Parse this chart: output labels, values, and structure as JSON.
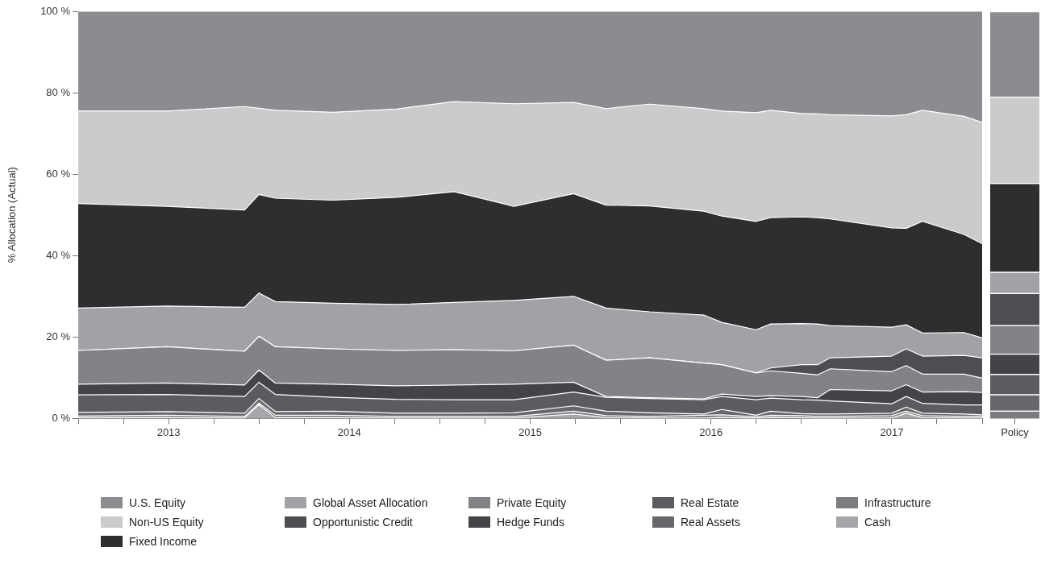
{
  "chart_data": [
    {
      "type": "area",
      "ylabel": "% Allocation (Actual)",
      "stacked": true,
      "legend": "bottom",
      "x": [
        2013.0,
        2013.49,
        2013.92,
        2014.0,
        2014.09,
        2014.41,
        2014.76,
        2015.08,
        2015.41,
        2015.74,
        2015.92,
        2016.16,
        2016.46,
        2016.56,
        2016.75,
        2016.83,
        2017.0,
        2017.09,
        2017.16,
        2017.5,
        2017.58,
        2017.67,
        2017.9,
        2018.0
      ],
      "xlim": [
        2013,
        2018
      ],
      "xticks": [
        {
          "value": 2013,
          "label": null
        },
        {
          "value": 2013.25,
          "label": null
        },
        {
          "value": 2013.5,
          "label": "2013"
        },
        {
          "value": 2013.75,
          "label": null
        },
        {
          "value": 2014,
          "label": null
        },
        {
          "value": 2014.25,
          "label": null
        },
        {
          "value": 2014.5,
          "label": "2014"
        },
        {
          "value": 2014.75,
          "label": null
        },
        {
          "value": 2015,
          "label": null
        },
        {
          "value": 2015.25,
          "label": null
        },
        {
          "value": 2015.5,
          "label": "2015"
        },
        {
          "value": 2015.75,
          "label": null
        },
        {
          "value": 2016,
          "label": null
        },
        {
          "value": 2016.25,
          "label": null
        },
        {
          "value": 2016.5,
          "label": "2016"
        },
        {
          "value": 2016.75,
          "label": null
        },
        {
          "value": 2017,
          "label": null
        },
        {
          "value": 2017.25,
          "label": null
        },
        {
          "value": 2017.5,
          "label": "2017"
        },
        {
          "value": 2017.75,
          "label": null
        },
        {
          "value": 2018,
          "label": null
        }
      ],
      "ylim": [
        0,
        100
      ],
      "yticks": [
        {
          "value": 0,
          "label": "0 %"
        },
        {
          "value": 20,
          "label": "20 %"
        },
        {
          "value": 40,
          "label": "40 %"
        },
        {
          "value": 60,
          "label": "60 %"
        },
        {
          "value": 80,
          "label": "80 %"
        },
        {
          "value": 100,
          "label": "100 %"
        }
      ],
      "series": [
        {
          "name": "Cash",
          "color": "#a6a6aa",
          "values": [
            0.2,
            0.2,
            0.1,
            3.4,
            0.2,
            0.2,
            0.1,
            0.1,
            0.1,
            1.1,
            0.2,
            0.1,
            0.1,
            0.3,
            0.1,
            0.3,
            0.2,
            0.1,
            0.1,
            0.1,
            1.3,
            0.2,
            0.1,
            0.1
          ]
        },
        {
          "name": "Infrastructure",
          "color": "#7c7c80",
          "values": [
            0.4,
            0.6,
            0.4,
            0.4,
            0.6,
            0.6,
            0.4,
            0.4,
            0.4,
            0.7,
            0.5,
            0.4,
            0.7,
            0.6,
            0.3,
            0.5,
            0.5,
            0.4,
            0.4,
            0.6,
            0.5,
            0.5,
            0.4,
            0.4
          ]
        },
        {
          "name": "Real Assets",
          "color": "#68686c",
          "values": [
            0.9,
            0.9,
            0.8,
            1.1,
            0.9,
            1.0,
            0.8,
            0.8,
            0.9,
            1.3,
            1.1,
            0.9,
            0.3,
            1.3,
            0.4,
            1.0,
            0.5,
            0.6,
            0.6,
            0.6,
            1.0,
            0.6,
            0.6,
            0.4
          ]
        },
        {
          "name": "Real Estate",
          "color": "#5c5c60",
          "values": [
            4.3,
            4.2,
            4.1,
            4.0,
            4.2,
            3.4,
            3.4,
            3.3,
            3.2,
            3.4,
            3.4,
            3.5,
            3.5,
            3.2,
            3.8,
            3.2,
            3.4,
            3.4,
            3.2,
            2.3,
            2.6,
            2.4,
            2.2,
            2.4
          ]
        },
        {
          "name": "Hedge Funds",
          "color": "#444448",
          "values": [
            2.6,
            2.8,
            2.8,
            3.0,
            2.8,
            3.2,
            3.3,
            3.6,
            3.8,
            2.4,
            0.2,
            0.2,
            0.2,
            0.6,
            0.8,
            0.6,
            0.8,
            0.6,
            2.8,
            3.2,
            2.9,
            2.8,
            3.3,
            3.1
          ]
        },
        {
          "name": "Private Equity",
          "color": "#838387",
          "values": [
            8.3,
            8.9,
            8.3,
            8.3,
            8.9,
            8.7,
            8.7,
            8.7,
            8.2,
            9.1,
            8.9,
            9.8,
            8.8,
            7.2,
            5.8,
            6.1,
            5.7,
            5.6,
            5.1,
            4.7,
            4.7,
            4.4,
            4.3,
            3.5
          ]
        },
        {
          "name": "Opportunistic Credit",
          "color": "#4e4e52",
          "values": [
            0,
            0,
            0,
            0,
            0,
            0,
            0,
            0,
            0,
            0,
            0,
            0,
            0,
            0,
            0,
            0.7,
            2.1,
            2.5,
            2.7,
            3.8,
            4.1,
            4.4,
            4.6,
            5.0
          ]
        },
        {
          "name": "Global Asset Allocation",
          "color": "#a2a2a6",
          "values": [
            10.4,
            10.0,
            10.8,
            10.6,
            11.1,
            11.2,
            11.3,
            11.6,
            12.4,
            12.0,
            12.8,
            11.3,
            11.8,
            10.4,
            10.6,
            10.8,
            10.1,
            10.0,
            7.9,
            7.1,
            5.9,
            5.7,
            5.6,
            4.9
          ]
        },
        {
          "name": "Fixed Income",
          "color": "#2f2d2f",
          "values": [
            25.7,
            24.5,
            23.9,
            24.2,
            25.4,
            25.3,
            26.3,
            27.2,
            23.1,
            25.2,
            25.3,
            26.0,
            25.5,
            26.1,
            26.6,
            26.1,
            26.2,
            26.1,
            26.2,
            24.4,
            23.7,
            27.4,
            24.1,
            23.1
          ]
        },
        {
          "name": "Non-US Equity",
          "color": "#cbcbcd",
          "values": [
            22.7,
            23.4,
            25.4,
            21.2,
            21.6,
            21.6,
            21.7,
            22.1,
            25.2,
            22.4,
            23.7,
            25.0,
            25.2,
            25.8,
            26.7,
            26.4,
            25.4,
            25.5,
            25.6,
            27.5,
            27.9,
            27.3,
            29.0,
            29.8
          ]
        },
        {
          "name": "U.S. Equity",
          "color": "#8c8c90",
          "values": [
            24.5,
            24.5,
            23.4,
            23.8,
            24.3,
            24.8,
            24.0,
            22.2,
            22.7,
            22.4,
            23.9,
            22.8,
            23.9,
            24.5,
            24.9,
            24.3,
            25.1,
            25.2,
            25.4,
            25.7,
            25.4,
            24.3,
            25.8,
            27.3
          ]
        }
      ]
    },
    {
      "type": "bar",
      "stacked": true,
      "categories": [
        "Policy"
      ],
      "ylim": [
        0,
        100
      ],
      "tick_labels": "x",
      "series": [
        {
          "color": "#a6a6aa",
          "values": [
            0
          ]
        },
        {
          "color": "#7c7c80",
          "values": [
            1.9
          ]
        },
        {
          "color": "#68686c",
          "values": [
            4.0
          ]
        },
        {
          "color": "#5c5c60",
          "values": [
            5.0
          ]
        },
        {
          "color": "#444448",
          "values": [
            5.0
          ]
        },
        {
          "color": "#838387",
          "values": [
            7.0
          ]
        },
        {
          "color": "#4e4e52",
          "values": [
            7.9
          ]
        },
        {
          "color": "#a2a2a6",
          "values": [
            5.2
          ]
        },
        {
          "color": "#2f2d2f",
          "values": [
            21.8
          ]
        },
        {
          "color": "#cbcbcd",
          "values": [
            21.2
          ]
        },
        {
          "color": "#8c8c90",
          "values": [
            21.0
          ]
        }
      ]
    }
  ]
}
